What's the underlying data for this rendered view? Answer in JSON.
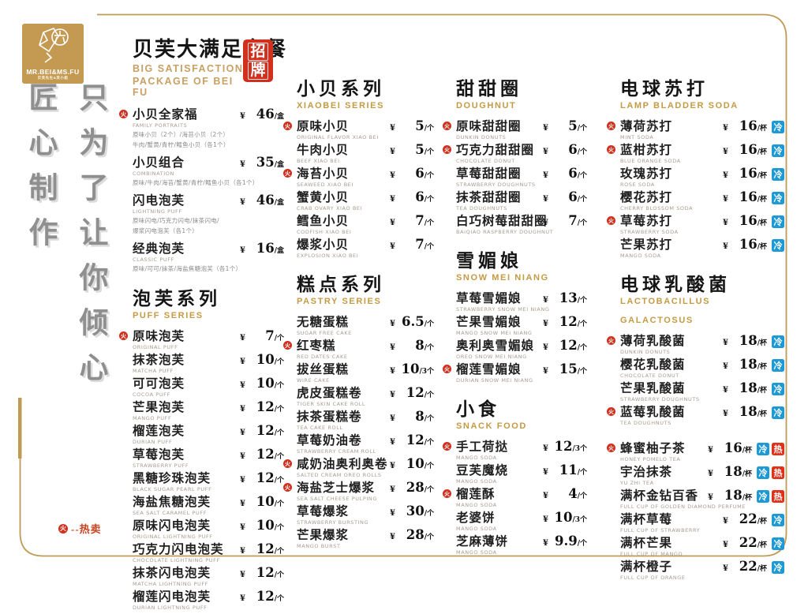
{
  "colors": {
    "accent_gold": "#c49a52",
    "subtitle_gold": "#c59a45",
    "badge_red": "#d0301d",
    "cold_blue": "#1d9ad6",
    "hot_red": "#e03118"
  },
  "logo": {
    "brand": "MR.BEI&MS.FU",
    "sub": "贝芙先生&芙小姐",
    "mark": "beifu-monogram"
  },
  "slogan": {
    "left": "匠心制作",
    "right": "只为了让你倾心"
  },
  "legend": {
    "marker": "hot-flame-badge",
    "flame": "火",
    "text": "--热卖"
  },
  "signature": {
    "title": "贝芙大满足套餐",
    "subtitle1": "BIG SATISFACTION",
    "subtitle2": "PACKAGE OF BEI FU",
    "badge_char1": "招",
    "badge_char2": "牌"
  },
  "badges": {
    "cold": "冷",
    "hot": "热"
  },
  "columns": [
    {
      "sections": [
        {
          "id": "signature-package",
          "signature": true,
          "items": [
            {
              "hot": true,
              "name": "小贝全家福",
              "en": "FAMILY PORTRAITS",
              "amount": "46",
              "unit": "/盒",
              "desc": [
                "原味小贝（2个）/海苔小贝（2个）",
                "牛肉/蟹黄/青柠/鳕鱼小贝（各1个）"
              ]
            },
            {
              "name": "小贝组合",
              "en": "COMBINATION",
              "amount": "35",
              "unit": "/盒",
              "desc": [
                "原味/牛肉/海苔/蟹黄/青柠/鳕鱼小贝（各1个）"
              ]
            },
            {
              "name": "闪电泡芙",
              "en": "LIGHTNING PUFF",
              "amount": "46",
              "unit": "/盒",
              "desc": [
                "原味闪电/巧克力闪电/抹茶闪电/",
                "爆浆闪电泡芙（各1个）"
              ]
            },
            {
              "name": "经典泡芙",
              "en": "CLASSIC PUFF",
              "amount": "16",
              "unit": "/盒",
              "desc": [
                "原味/可可/抹茶/海盐焦糖泡芙（各1个）"
              ]
            }
          ]
        },
        {
          "id": "puff-series",
          "title": "泡芙系列",
          "subtitle": [
            "PUFF SERIES"
          ],
          "items": [
            {
              "hot": true,
              "name": "原味泡芙",
              "en": "ORIGINAL PUFF",
              "amount": "7",
              "unit": "/个"
            },
            {
              "name": "抹茶泡芙",
              "en": "MATCHA PUFF",
              "amount": "10",
              "unit": "/个"
            },
            {
              "name": "可可泡芙",
              "en": "COCOA PUFF",
              "amount": "10",
              "unit": "/个"
            },
            {
              "name": "芒果泡芙",
              "en": "MANGO PUFF",
              "amount": "12",
              "unit": "/个"
            },
            {
              "name": "榴莲泡芙",
              "en": "DURIAN PUFF",
              "amount": "12",
              "unit": "/个"
            },
            {
              "name": "草莓泡芙",
              "en": "STRAWBERRY PUFF",
              "amount": "12",
              "unit": "/个"
            },
            {
              "name": "黑糖珍珠泡芙",
              "en": "BLACK SUGAR PEARL PUFF",
              "amount": "12",
              "unit": "/个"
            },
            {
              "name": "海盐焦糖泡芙",
              "en": "SEA SALT CARAMEL PUFF",
              "amount": "10",
              "unit": "/个"
            },
            {
              "name": "原味闪电泡芙",
              "en": "ORIGINAL LIGHTNING PUFF",
              "amount": "10",
              "unit": "/个"
            },
            {
              "name": "巧克力闪电泡芙",
              "en": "CHOCOLATE LIGHTNING PUFF",
              "amount": "12",
              "unit": "/个"
            },
            {
              "name": "抹茶闪电泡芙",
              "en": "MATCHA LIGHTNING PUFF",
              "amount": "12",
              "unit": "/个"
            },
            {
              "name": "榴莲闪电泡芙",
              "en": "DURIAN LIGHTNING PUFF",
              "amount": "12",
              "unit": "/个"
            }
          ]
        }
      ]
    },
    {
      "sections": [
        {
          "id": "xiaobei-series",
          "title": "小贝系列",
          "subtitle": [
            "XIAOBEI SERIES"
          ],
          "items": [
            {
              "hot": true,
              "name": "原味小贝",
              "en": "ORIGINAL FLAVOR XIAO BEI",
              "amount": "5",
              "unit": "/个"
            },
            {
              "name": "牛肉小贝",
              "en": "BEEF XIAO BEI",
              "amount": "5",
              "unit": "/个"
            },
            {
              "hot": true,
              "name": "海苔小贝",
              "en": "SEAWEED XIAO BEI",
              "amount": "6",
              "unit": "/个"
            },
            {
              "name": "蟹黄小贝",
              "en": "CRAB OVARY XIAO BEI",
              "amount": "6",
              "unit": "/个"
            },
            {
              "name": "鳕鱼小贝",
              "en": "CODFISH XIAO BEI",
              "amount": "7",
              "unit": "/个"
            },
            {
              "name": "爆浆小贝",
              "en": "EXPLOSION XIAO BEI",
              "amount": "7",
              "unit": "/个"
            }
          ]
        },
        {
          "id": "pastry-series",
          "title": "糕点系列",
          "subtitle": [
            "PASTRY SERIES"
          ],
          "items": [
            {
              "name": "无糖蛋糕",
              "en": "SUGAR FREE CAKE",
              "amount": "6.5",
              "unit": "/个"
            },
            {
              "hot": true,
              "name": "红枣糕",
              "en": "RED DATES CAKE",
              "amount": "8",
              "unit": "/个"
            },
            {
              "name": "拔丝蛋糕",
              "en": "WIRE CAKE",
              "amount": "10",
              "unit": "/3个"
            },
            {
              "name": "虎皮蛋糕卷",
              "en": "TIGER SKIN CAKE ROLL",
              "amount": "12",
              "unit": "/个"
            },
            {
              "name": "抹茶蛋糕卷",
              "en": "TEA CAKE ROLL",
              "amount": "8",
              "unit": "/个"
            },
            {
              "name": "草莓奶油卷",
              "en": "STRAWBERRY CREAM ROLL",
              "amount": "12",
              "unit": "/个"
            },
            {
              "hot": true,
              "name": "咸奶油奥利奥卷",
              "en": "SALTED CREAM OREO ROLLS",
              "amount": "10",
              "unit": "/个"
            },
            {
              "hot": true,
              "name": "海盐芝士爆浆",
              "en": "SEA SALT CHEESE PULPING",
              "amount": "28",
              "unit": "/个"
            },
            {
              "name": "草莓爆浆",
              "en": "STRAWBERRY BURSTING",
              "amount": "30",
              "unit": "/个"
            },
            {
              "name": "芒果爆浆",
              "en": "MANGO BURST",
              "amount": "28",
              "unit": "/个"
            }
          ]
        }
      ]
    },
    {
      "sections": [
        {
          "id": "doughnut",
          "title": "甜甜圈",
          "subtitle": [
            "DOUGHNUT"
          ],
          "items": [
            {
              "hot": true,
              "name": "原味甜甜圈",
              "en": "DUNKIN DONUTS",
              "amount": "5",
              "unit": "/个"
            },
            {
              "hot": true,
              "name": "巧克力甜甜圈",
              "en": "CHOCOLATE DONUT",
              "amount": "6",
              "unit": "/个"
            },
            {
              "name": "草莓甜甜圈",
              "en": "STRAWBERRY DOUGHNUTS",
              "amount": "6",
              "unit": "/个"
            },
            {
              "name": "抹茶甜甜圈",
              "en": "TEA DOUGHNUTS",
              "amount": "6",
              "unit": "/个"
            },
            {
              "name": "白巧树莓甜甜圈",
              "en": "BAIQIAO RASPBERRY DOUGHNUT",
              "amount": "7",
              "unit": "/个"
            }
          ]
        },
        {
          "id": "snow-mei-niang",
          "title": "雪媚娘",
          "subtitle": [
            "SNOW MEI NIANG"
          ],
          "items": [
            {
              "name": "草莓雪媚娘",
              "en": "STRAWBERRY SNOW MEI NIANG",
              "amount": "13",
              "unit": "/个"
            },
            {
              "name": "芒果雪媚娘",
              "en": "MANGO SNOW MEI NIANG",
              "amount": "12",
              "unit": "/个"
            },
            {
              "name": "奥利奥雪媚娘",
              "en": "OREO SNOW MEI NIANG",
              "amount": "12",
              "unit": "/个"
            },
            {
              "hot": true,
              "name": "榴莲雪媚娘",
              "en": "DURIAN SNOW MEI NIANG",
              "amount": "15",
              "unit": "/个"
            }
          ]
        },
        {
          "id": "snack-food",
          "title": "小食",
          "subtitle": [
            "SNACK FOOD"
          ],
          "items": [
            {
              "hot": true,
              "name": "手工荷挞",
              "en": "MANGO SODA",
              "amount": "12",
              "unit": "/3个"
            },
            {
              "name": "豆芙魔烧",
              "en": "MANGO SODA",
              "amount": "11",
              "unit": "/个"
            },
            {
              "hot": true,
              "name": "榴莲酥",
              "en": "MANGO SODA",
              "amount": "4",
              "unit": "/个"
            },
            {
              "name": "老婆饼",
              "en": "MANGO SODA",
              "amount": "10",
              "unit": "/3个"
            },
            {
              "name": "芝麻薄饼",
              "en": "MANGO SODA",
              "amount": "9.9",
              "unit": "/个"
            }
          ]
        }
      ]
    },
    {
      "sections": [
        {
          "id": "lamp-bladder-soda",
          "title": "电球苏打",
          "subtitle": [
            "LAMP BLADDER SODA"
          ],
          "items": [
            {
              "hot": true,
              "name": "薄荷苏打",
              "en": "MINT SODA",
              "amount": "16",
              "unit": "/杯",
              "badges": [
                "cold"
              ]
            },
            {
              "hot": true,
              "name": "蓝柑苏打",
              "en": "BLUE ORANGE SODA",
              "amount": "16",
              "unit": "/杯",
              "badges": [
                "cold"
              ]
            },
            {
              "name": "玫瑰苏打",
              "en": "ROSE SODA",
              "amount": "16",
              "unit": "/杯",
              "badges": [
                "cold"
              ]
            },
            {
              "name": "樱花苏打",
              "en": "CHERRY BLOSSOM SODA",
              "amount": "16",
              "unit": "/杯",
              "badges": [
                "cold"
              ]
            },
            {
              "hot": true,
              "name": "草莓苏打",
              "en": "STRAWBERRY SODA",
              "amount": "16",
              "unit": "/杯",
              "badges": [
                "cold"
              ]
            },
            {
              "name": "芒果苏打",
              "en": "MANGO SODA",
              "amount": "16",
              "unit": "/杯",
              "badges": [
                "cold"
              ]
            }
          ]
        },
        {
          "id": "lactobacillus",
          "title": "电球乳酸菌",
          "subtitle": [
            "LACTOBACILLUS",
            "GALACTOSUS"
          ],
          "items": [
            {
              "hot": true,
              "name": "薄荷乳酸菌",
              "en": "DUNKIN DONUTS",
              "amount": "18",
              "unit": "/杯",
              "badges": [
                "cold"
              ]
            },
            {
              "name": "樱花乳酸菌",
              "en": "CHOCOLATE DONUT",
              "amount": "18",
              "unit": "/杯",
              "badges": [
                "cold"
              ]
            },
            {
              "name": "芒果乳酸菌",
              "en": "STRAWBERRY DOUGHNUTS",
              "amount": "18",
              "unit": "/杯",
              "badges": [
                "cold"
              ]
            },
            {
              "hot": true,
              "name": "蓝莓乳酸菌",
              "en": "TEA DOUGHNUTS",
              "amount": "18",
              "unit": "/杯",
              "badges": [
                "cold"
              ]
            }
          ]
        },
        {
          "id": "tea-drinks",
          "items": [
            {
              "hot": true,
              "name": "蜂蜜柚子茶",
              "en": "HONEY POMELO TEA",
              "amount": "16",
              "unit": "/杯",
              "badges": [
                "cold",
                "hot"
              ]
            },
            {
              "name": "宇治抹茶",
              "en": "YU ZHI TEA",
              "amount": "18",
              "unit": "/杯",
              "badges": [
                "cold",
                "hot"
              ]
            },
            {
              "name": "满杯金钻百香",
              "en": "FULL CUP OF GOLDEN DIAMOND PERFUME",
              "amount": "18",
              "unit": "/杯",
              "badges": [
                "cold",
                "hot"
              ]
            },
            {
              "name": "满杯草莓",
              "en": "FULL CUP OF STRAWBERRY",
              "amount": "22",
              "unit": "/杯",
              "badges": [
                "cold"
              ]
            },
            {
              "name": "满杯芒果",
              "en": "FULL CUP OF MANGO",
              "amount": "22",
              "unit": "/杯",
              "badges": [
                "cold"
              ]
            },
            {
              "name": "满杯橙子",
              "en": "FULL CUP OF ORANGE",
              "amount": "22",
              "unit": "/杯",
              "badges": [
                "cold"
              ]
            }
          ]
        }
      ]
    }
  ],
  "currency": "¥"
}
